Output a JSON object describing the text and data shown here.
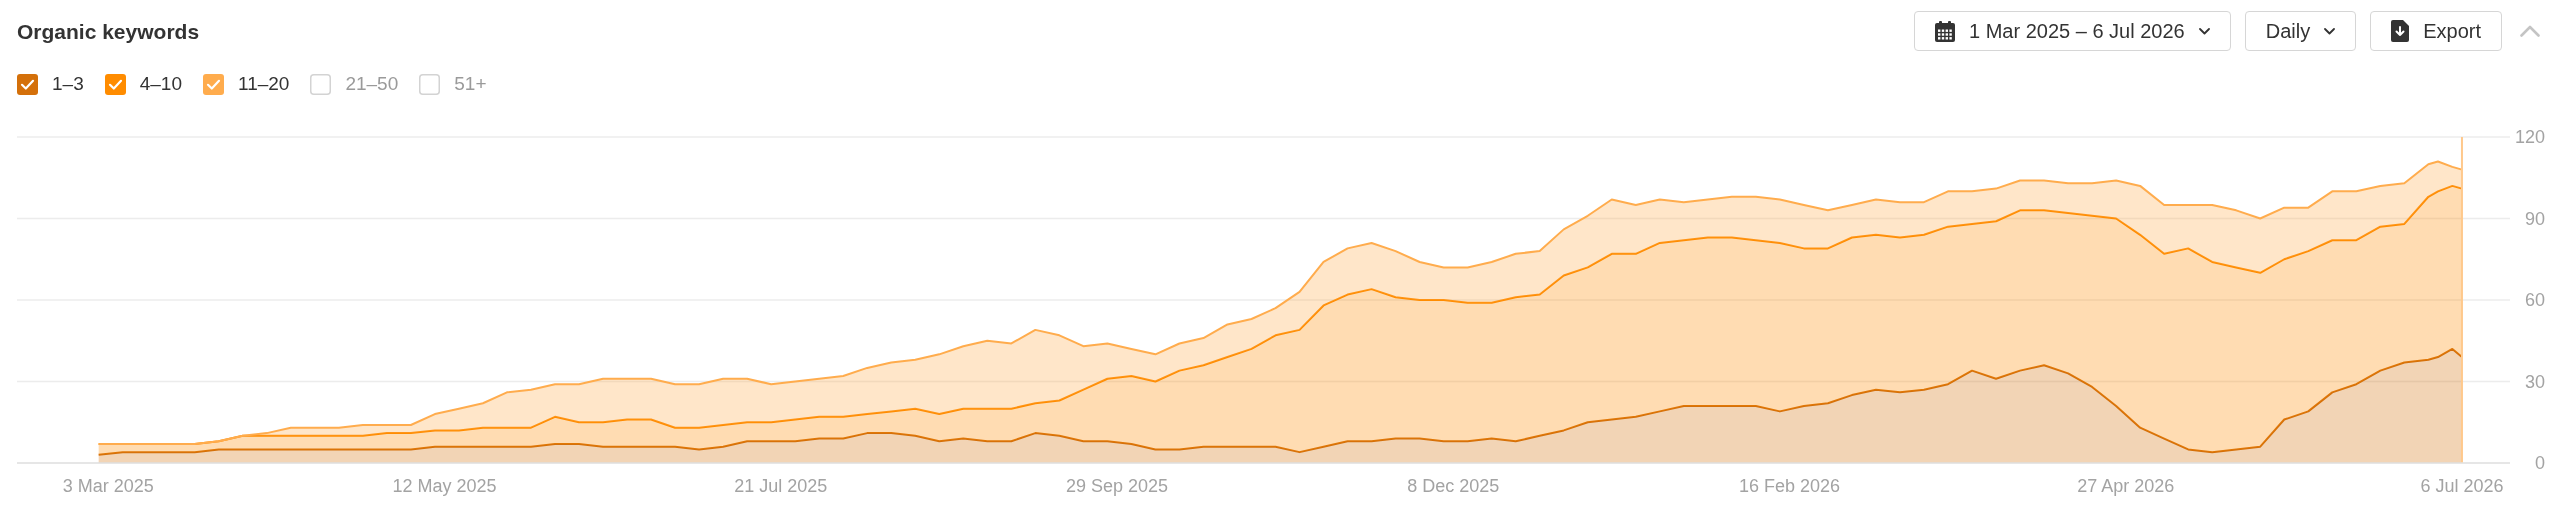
{
  "chart_data": {
    "type": "area",
    "title": "Organic keywords",
    "annotations": [
      "1 Mar 2025 – 6 Jul 2026",
      "Daily",
      "Export"
    ],
    "x": [
      "2025-03-01",
      "2025-03-06",
      "2025-03-11",
      "2025-03-16",
      "2025-03-21",
      "2025-03-26",
      "2025-03-31",
      "2025-04-05",
      "2025-04-10",
      "2025-04-15",
      "2025-04-20",
      "2025-04-25",
      "2025-04-30",
      "2025-05-05",
      "2025-05-10",
      "2025-05-15",
      "2025-05-20",
      "2025-05-25",
      "2025-05-30",
      "2025-06-04",
      "2025-06-09",
      "2025-06-14",
      "2025-06-19",
      "2025-06-24",
      "2025-06-29",
      "2025-07-04",
      "2025-07-09",
      "2025-07-14",
      "2025-07-19",
      "2025-07-24",
      "2025-07-29",
      "2025-08-03",
      "2025-08-08",
      "2025-08-13",
      "2025-08-18",
      "2025-08-23",
      "2025-08-28",
      "2025-09-02",
      "2025-09-07",
      "2025-09-12",
      "2025-09-17",
      "2025-09-22",
      "2025-09-27",
      "2025-10-02",
      "2025-10-07",
      "2025-10-12",
      "2025-10-17",
      "2025-10-22",
      "2025-10-27",
      "2025-11-01",
      "2025-11-06",
      "2025-11-11",
      "2025-11-16",
      "2025-11-21",
      "2025-11-26",
      "2025-12-01",
      "2025-12-06",
      "2025-12-11",
      "2025-12-16",
      "2025-12-21",
      "2025-12-26",
      "2025-12-31",
      "2026-01-05",
      "2026-01-10",
      "2026-01-15",
      "2026-01-20",
      "2026-01-25",
      "2026-01-30",
      "2026-02-04",
      "2026-02-09",
      "2026-02-14",
      "2026-02-19",
      "2026-02-24",
      "2026-03-01",
      "2026-03-06",
      "2026-03-11",
      "2026-03-16",
      "2026-03-21",
      "2026-03-26",
      "2026-03-31",
      "2026-04-05",
      "2026-04-10",
      "2026-04-15",
      "2026-04-20",
      "2026-04-25",
      "2026-04-30",
      "2026-05-05",
      "2026-05-10",
      "2026-05-15",
      "2026-05-20",
      "2026-05-25",
      "2026-05-30",
      "2026-06-04",
      "2026-06-09",
      "2026-06-14",
      "2026-06-19",
      "2026-06-24",
      "2026-06-29",
      "2026-07-01",
      "2026-07-04",
      "2026-07-06"
    ],
    "series": [
      {
        "name": "1–3",
        "color": "#d4700a",
        "values": [
          3,
          4,
          4,
          4,
          4,
          5,
          5,
          5,
          5,
          5,
          5,
          5,
          5,
          5,
          6,
          6,
          6,
          6,
          6,
          7,
          7,
          6,
          6,
          6,
          6,
          5,
          6,
          8,
          8,
          8,
          9,
          9,
          11,
          11,
          10,
          8,
          9,
          8,
          8,
          11,
          10,
          8,
          8,
          7,
          5,
          5,
          6,
          6,
          6,
          6,
          4,
          6,
          8,
          8,
          9,
          9,
          8,
          8,
          9,
          8,
          10,
          12,
          15,
          16,
          17,
          19,
          21,
          21,
          21,
          21,
          19,
          21,
          22,
          25,
          27,
          26,
          27,
          29,
          34,
          31,
          34,
          36,
          33,
          28,
          21,
          13,
          9,
          5,
          4,
          5,
          6,
          16,
          19,
          26,
          29,
          34,
          37,
          38,
          39,
          42,
          39
        ]
      },
      {
        "name": "4–10",
        "color": "#ff8c00",
        "values": [
          4,
          3,
          3,
          3,
          3,
          3,
          5,
          5,
          5,
          5,
          5,
          5,
          6,
          6,
          6,
          6,
          7,
          7,
          7,
          10,
          8,
          9,
          10,
          10,
          7,
          8,
          8,
          7,
          7,
          8,
          8,
          8,
          7,
          8,
          10,
          10,
          11,
          12,
          12,
          11,
          13,
          19,
          23,
          25,
          25,
          29,
          30,
          33,
          36,
          41,
          45,
          52,
          54,
          56,
          52,
          51,
          52,
          51,
          50,
          53,
          52,
          57,
          57,
          61,
          60,
          62,
          61,
          62,
          62,
          61,
          62,
          58,
          57,
          58,
          57,
          57,
          57,
          58,
          54,
          58,
          59,
          57,
          59,
          63,
          69,
          71,
          68,
          74,
          70,
          67,
          64,
          59,
          59,
          56,
          53,
          53,
          51,
          60,
          61,
          60,
          62
        ]
      },
      {
        "name": "11–20",
        "color": "#ffac4d",
        "values": [
          0,
          0,
          0,
          0,
          0,
          0,
          0,
          1,
          3,
          3,
          3,
          4,
          3,
          3,
          6,
          8,
          9,
          13,
          14,
          12,
          14,
          16,
          15,
          15,
          16,
          16,
          17,
          16,
          14,
          14,
          14,
          15,
          17,
          18,
          18,
          22,
          23,
          25,
          24,
          27,
          24,
          16,
          13,
          10,
          10,
          10,
          10,
          12,
          11,
          10,
          14,
          16,
          17,
          17,
          17,
          14,
          12,
          13,
          15,
          16,
          16,
          17,
          19,
          20,
          18,
          16,
          14,
          14,
          15,
          16,
          16,
          16,
          14,
          12,
          13,
          13,
          12,
          13,
          12,
          12,
          11,
          11,
          11,
          12,
          14,
          18,
          18,
          16,
          21,
          21,
          20,
          19,
          16,
          18,
          18,
          15,
          15,
          12,
          11,
          7,
          7
        ]
      },
      {
        "name": "21–50",
        "values": [
          null,
          null,
          null,
          null,
          null,
          null,
          null,
          null,
          null,
          null,
          null,
          null,
          null,
          null,
          null,
          null,
          null,
          null,
          null,
          null,
          null,
          null,
          null,
          null,
          null,
          null,
          null,
          null,
          null,
          null,
          null,
          null,
          null,
          null,
          null,
          null,
          null,
          null,
          null,
          null,
          null,
          null,
          null,
          null,
          null,
          null,
          null,
          null,
          null,
          null,
          null,
          null,
          null,
          null,
          null,
          null,
          null,
          null,
          null,
          null,
          null,
          null,
          null,
          null,
          null,
          null,
          null,
          null,
          null,
          null,
          null,
          null,
          null,
          null,
          null,
          null,
          null,
          null,
          null,
          null,
          null,
          null,
          null,
          null,
          null,
          null,
          null,
          null,
          null,
          null,
          null,
          null,
          null,
          null,
          null,
          null,
          null,
          null,
          null,
          null,
          null
        ]
      },
      {
        "name": "51+",
        "values": [
          null,
          null,
          null,
          null,
          null,
          null,
          null,
          null,
          null,
          null,
          null,
          null,
          null,
          null,
          null,
          null,
          null,
          null,
          null,
          null,
          null,
          null,
          null,
          null,
          null,
          null,
          null,
          null,
          null,
          null,
          null,
          null,
          null,
          null,
          null,
          null,
          null,
          null,
          null,
          null,
          null,
          null,
          null,
          null,
          null,
          null,
          null,
          null,
          null,
          null,
          null,
          null,
          null,
          null,
          null,
          null,
          null,
          null,
          null,
          null,
          null,
          null,
          null,
          null,
          null,
          null,
          null,
          null,
          null,
          null,
          null,
          null,
          null,
          null,
          null,
          null,
          null,
          null,
          null,
          null,
          null,
          null,
          null,
          null,
          null,
          null,
          null,
          null,
          null,
          null,
          null,
          null,
          null,
          null,
          null,
          null,
          null,
          null,
          null,
          null,
          null
        ]
      }
    ],
    "stacked": true,
    "xlim": [
      "2025-02-12",
      "2026-07-16"
    ],
    "xticks": [
      {
        "value": "2025-03-03",
        "label": "3 Mar 2025"
      },
      {
        "value": "2025-05-12",
        "label": "12 May 2025"
      },
      {
        "value": "2025-07-21",
        "label": "21 Jul 2025"
      },
      {
        "value": "2025-09-29",
        "label": "29 Sep 2025"
      },
      {
        "value": "2025-12-08",
        "label": "8 Dec 2025"
      },
      {
        "value": "2026-02-16",
        "label": "16 Feb 2026"
      },
      {
        "value": "2026-04-27",
        "label": "27 Apr 2026"
      },
      {
        "value": "2026-07-06",
        "label": "6 Jul 2026"
      }
    ],
    "ylim": [
      0,
      120
    ],
    "yticks": [
      0,
      30,
      60,
      90,
      120
    ],
    "grid": "y",
    "legend": "top left",
    "ref_lines": [
      {
        "axis": "x",
        "value": "2026-07-06",
        "color": "#ffc98c"
      }
    ]
  }
}
